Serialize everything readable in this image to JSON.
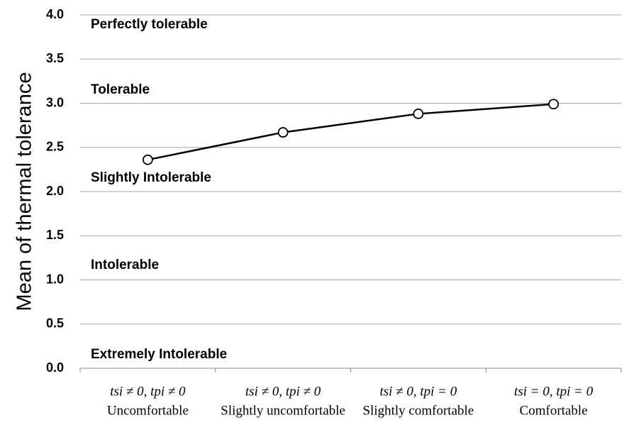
{
  "chart_data": {
    "type": "line",
    "y_label": "Mean of thermal tolerance",
    "category_conditions": [
      "tsi ≠ 0, tpi ≠ 0",
      "tsi ≠ 0, tpi ≠ 0",
      "tsi ≠ 0, tpi = 0",
      "tsi = 0, tpi = 0"
    ],
    "categories": [
      "Uncomfortable",
      "Slightly uncomfortable",
      "Slightly comfortable",
      "Comfortable"
    ],
    "series": [
      {
        "color": "#000000",
        "values": [
          2.36,
          2.67,
          2.88,
          2.99
        ]
      }
    ],
    "ylim": [
      0,
      4
    ],
    "yticks": [
      {
        "value": 0,
        "label": "0.0"
      },
      0.5,
      {
        "value": 1,
        "label": "1.0"
      },
      1.5,
      {
        "value": 2,
        "label": "2.0"
      },
      2.5,
      {
        "value": 3,
        "label": "3.0"
      },
      3.5,
      {
        "value": 4,
        "label": "4.0"
      }
    ],
    "grid": true,
    "annotations": [
      "Perfectly tolerable",
      "Tolerable",
      "Slightly Intolerable",
      "Intolerable",
      "Extremely Intolerable"
    ]
  }
}
